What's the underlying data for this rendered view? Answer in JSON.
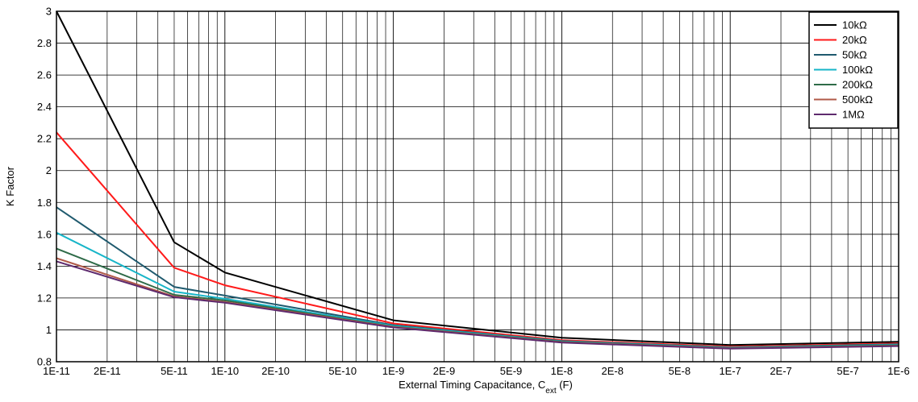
{
  "chart_data": {
    "type": "line",
    "title": "",
    "xlabel_main": "External Timing Capacitance, C",
    "xlabel_sub": "ext",
    "xlabel_unit": " (F)",
    "ylabel": "K Factor",
    "x_scale": "log",
    "xlim": [
      1e-11,
      1e-06
    ],
    "ylim": [
      0.8,
      3
    ],
    "y_ticks": [
      "0.8",
      "1",
      "1.2",
      "1.4",
      "1.6",
      "1.8",
      "2",
      "2.2",
      "2.4",
      "2.6",
      "2.8",
      "3"
    ],
    "x_ticks": [
      {
        "value": 1e-11,
        "label": "1E-11"
      },
      {
        "value": 2e-11,
        "label": "2E-11"
      },
      {
        "value": 5e-11,
        "label": "5E-11"
      },
      {
        "value": 1e-10,
        "label": "1E-10"
      },
      {
        "value": 2e-10,
        "label": "2E-10"
      },
      {
        "value": 5e-10,
        "label": "5E-10"
      },
      {
        "value": 1e-09,
        "label": "1E-9"
      },
      {
        "value": 2e-09,
        "label": "2E-9"
      },
      {
        "value": 5e-09,
        "label": "5E-9"
      },
      {
        "value": 1e-08,
        "label": "1E-8"
      },
      {
        "value": 2e-08,
        "label": "2E-8"
      },
      {
        "value": 5e-08,
        "label": "5E-8"
      },
      {
        "value": 1e-07,
        "label": "1E-7"
      },
      {
        "value": 2e-07,
        "label": "2E-7"
      },
      {
        "value": 5e-07,
        "label": "5E-7"
      },
      {
        "value": 1e-06,
        "label": "1E-6"
      }
    ],
    "grid": true,
    "legend_position": "top-right",
    "x": [
      1e-11,
      5e-11,
      1e-10,
      1e-09,
      1e-08,
      1e-07,
      1e-06
    ],
    "series": [
      {
        "name": "10kΩ",
        "color": "#000000",
        "values": [
          3.0,
          1.55,
          1.36,
          1.06,
          0.95,
          0.905,
          0.925
        ]
      },
      {
        "name": "20kΩ",
        "color": "#ff1a1a",
        "values": [
          2.24,
          1.39,
          1.28,
          1.04,
          0.935,
          0.895,
          0.915
        ]
      },
      {
        "name": "50kΩ",
        "color": "#1f5a6e",
        "values": [
          1.77,
          1.27,
          1.215,
          1.03,
          0.93,
          0.89,
          0.91
        ]
      },
      {
        "name": "100kΩ",
        "color": "#17b5c8",
        "values": [
          1.61,
          1.24,
          1.195,
          1.025,
          0.928,
          0.888,
          0.906
        ]
      },
      {
        "name": "200kΩ",
        "color": "#2e6b48",
        "values": [
          1.51,
          1.22,
          1.185,
          1.02,
          0.925,
          0.885,
          0.903
        ]
      },
      {
        "name": "500kΩ",
        "color": "#b05a48",
        "values": [
          1.45,
          1.21,
          1.175,
          1.018,
          0.922,
          0.884,
          0.9
        ]
      },
      {
        "name": "1MΩ",
        "color": "#5e2a6e",
        "values": [
          1.43,
          1.205,
          1.17,
          1.015,
          0.92,
          0.882,
          0.898
        ]
      }
    ]
  }
}
